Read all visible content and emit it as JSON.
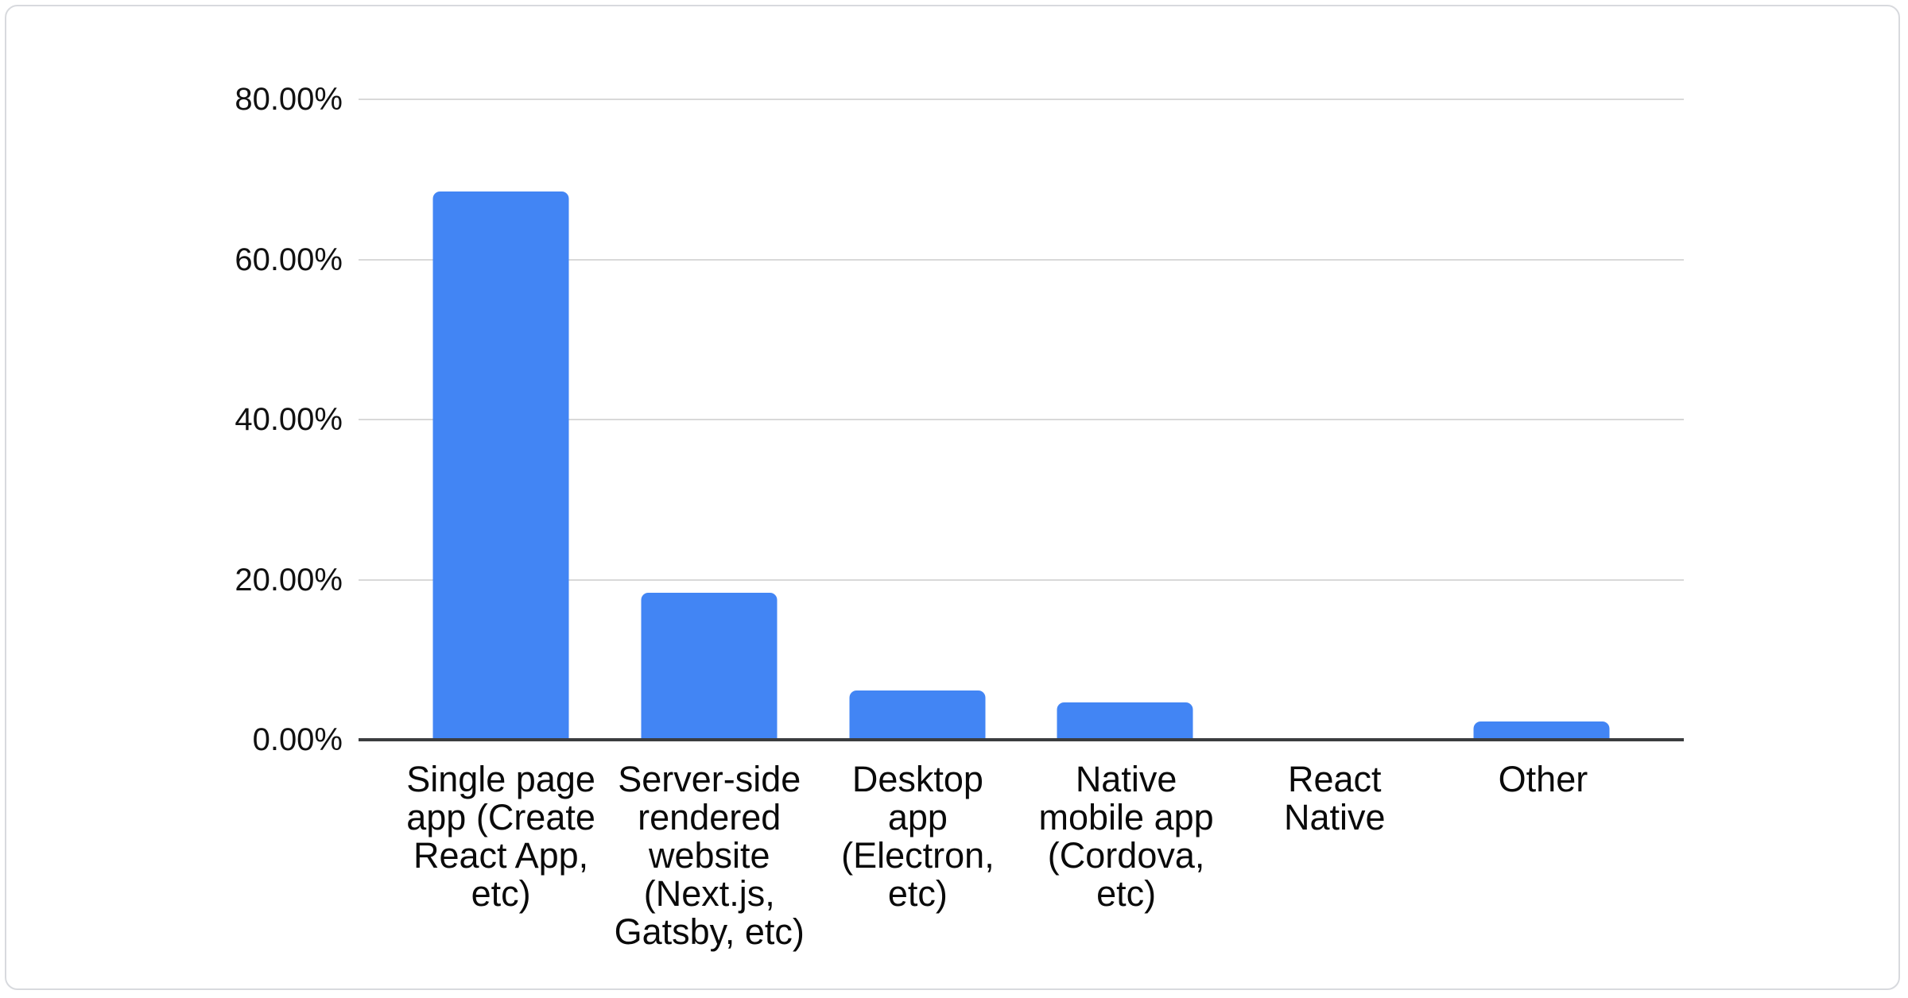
{
  "chart_data": {
    "type": "bar",
    "title": "",
    "categories": [
      "Single page app (Create React App, etc)",
      "Server-side rendered website (Next.js, Gatsby, etc)",
      "Desktop app (Electron, etc)",
      "Native mobile app (Cordova, etc)",
      "React Native",
      "Other"
    ],
    "values": [
      68.5,
      18.4,
      6.2,
      4.7,
      0,
      2.3
    ],
    "value_unit": "%",
    "xlabel": "",
    "ylabel": "",
    "y_axis": {
      "min": 0,
      "max": 80,
      "tick_values": [
        0,
        20,
        40,
        60,
        80
      ],
      "tick_labels": [
        "0.00%",
        "20.00%",
        "40.00%",
        "60.00%",
        "80.00%"
      ]
    },
    "legend": "none",
    "grid": true,
    "colors": {
      "bar": "#4285f4",
      "gridline": "#d9d9d9",
      "axis_line": "#3b3d3f",
      "tick_text": "#111111",
      "category_text": "#0a0a0a",
      "card_border": "#d8dade",
      "background": "#ffffff"
    }
  }
}
